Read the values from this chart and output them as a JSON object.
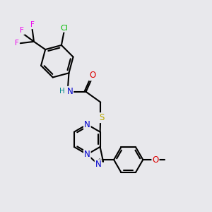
{
  "background_color": "#e8e8ec",
  "bond_color": "#000000",
  "bond_width": 1.5,
  "atom_colors": {
    "C": "#000000",
    "N": "#0000cc",
    "O": "#dd0000",
    "S": "#bbaa00",
    "F": "#ee00ee",
    "Cl": "#00bb00",
    "H": "#008888"
  },
  "font_size": 8.5,
  "fig_size": [
    3.0,
    3.0
  ],
  "dpi": 100
}
